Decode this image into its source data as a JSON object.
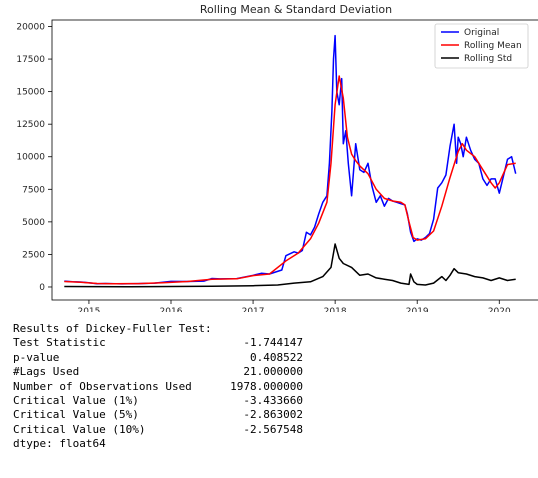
{
  "chart_data": {
    "type": "line",
    "title": "Rolling Mean & Standard Deviation",
    "xlabel": "",
    "ylabel": "",
    "xlim": [
      2014.55,
      2020.35
    ],
    "ylim": [
      -1000,
      20500
    ],
    "x_ticks": [
      2015,
      2016,
      2017,
      2018,
      2019,
      2020
    ],
    "x_tick_labels": [
      "2015",
      "2016",
      "2017",
      "2018",
      "2019",
      "2020"
    ],
    "y_ticks": [
      0,
      2500,
      5000,
      7500,
      10000,
      12500,
      15000,
      17500,
      20000
    ],
    "y_tick_labels": [
      "0",
      "2500",
      "5000",
      "7500",
      "10000",
      "12500",
      "15000",
      "17500",
      "20000"
    ],
    "grid": false,
    "legend_position": "top-right",
    "series": [
      {
        "name": "Original",
        "color": "#0000ff",
        "x": [
          2014.7,
          2014.8,
          2014.9,
          2015.0,
          2015.1,
          2015.2,
          2015.4,
          2015.6,
          2015.8,
          2016.0,
          2016.2,
          2016.4,
          2016.5,
          2016.6,
          2016.8,
          2017.0,
          2017.1,
          2017.2,
          2017.35,
          2017.4,
          2017.5,
          2017.55,
          2017.6,
          2017.65,
          2017.7,
          2017.75,
          2017.8,
          2017.85,
          2017.9,
          2017.93,
          2017.96,
          2017.98,
          2018.0,
          2018.02,
          2018.05,
          2018.08,
          2018.1,
          2018.13,
          2018.16,
          2018.2,
          2018.25,
          2018.3,
          2018.35,
          2018.4,
          2018.45,
          2018.5,
          2018.55,
          2018.6,
          2018.65,
          2018.7,
          2018.75,
          2018.8,
          2018.85,
          2018.88,
          2018.92,
          2018.96,
          2019.0,
          2019.05,
          2019.1,
          2019.15,
          2019.2,
          2019.25,
          2019.3,
          2019.35,
          2019.4,
          2019.45,
          2019.48,
          2019.5,
          2019.53,
          2019.56,
          2019.6,
          2019.65,
          2019.7,
          2019.75,
          2019.8,
          2019.85,
          2019.9,
          2019.95,
          2020.0,
          2020.05,
          2020.1,
          2020.15,
          2020.2
        ],
        "y": [
          450,
          400,
          380,
          330,
          250,
          270,
          240,
          260,
          300,
          430,
          420,
          450,
          650,
          620,
          640,
          900,
          1050,
          1000,
          1300,
          2400,
          2700,
          2600,
          2800,
          4200,
          4000,
          4600,
          5600,
          6500,
          7000,
          9500,
          13500,
          17500,
          19300,
          15000,
          14000,
          16000,
          11000,
          12000,
          9500,
          7000,
          11000,
          9000,
          8800,
          9500,
          7700,
          6500,
          7000,
          6200,
          6800,
          6600,
          6500,
          6400,
          6300,
          5600,
          4200,
          3500,
          3700,
          3600,
          3800,
          4100,
          5200,
          7600,
          8000,
          8600,
          10800,
          12500,
          9500,
          11500,
          11000,
          10000,
          11500,
          10500,
          9800,
          9500,
          8300,
          7800,
          8300,
          8300,
          7200,
          8500,
          9800,
          10000,
          8700
        ]
      },
      {
        "name": "Rolling Mean",
        "color": "#ff0000",
        "x": [
          2014.7,
          2014.9,
          2015.1,
          2015.3,
          2015.6,
          2015.9,
          2016.2,
          2016.5,
          2016.8,
          2017.0,
          2017.2,
          2017.4,
          2017.55,
          2017.7,
          2017.8,
          2017.9,
          2017.95,
          2018.0,
          2018.05,
          2018.1,
          2018.15,
          2018.2,
          2018.25,
          2018.3,
          2018.4,
          2018.5,
          2018.6,
          2018.7,
          2018.8,
          2018.85,
          2018.9,
          2018.95,
          2019.0,
          2019.1,
          2019.2,
          2019.3,
          2019.4,
          2019.5,
          2019.55,
          2019.6,
          2019.7,
          2019.8,
          2019.9,
          2019.95,
          2020.0,
          2020.1,
          2020.2
        ],
        "y": [
          420,
          360,
          270,
          250,
          260,
          330,
          420,
          600,
          630,
          870,
          1000,
          2000,
          2600,
          3700,
          4900,
          6500,
          9500,
          14000,
          16200,
          14500,
          11500,
          10200,
          9700,
          9300,
          8700,
          7500,
          6800,
          6600,
          6500,
          6300,
          5000,
          3800,
          3600,
          3700,
          4300,
          6200,
          8400,
          10400,
          11000,
          10500,
          10000,
          9000,
          8000,
          7600,
          8000,
          9400,
          9500
        ]
      },
      {
        "name": "Rolling Std",
        "color": "#000000",
        "x": [
          2014.7,
          2015.0,
          2015.5,
          2016.0,
          2016.5,
          2017.0,
          2017.3,
          2017.5,
          2017.7,
          2017.85,
          2017.95,
          2018.0,
          2018.05,
          2018.1,
          2018.2,
          2018.3,
          2018.4,
          2018.5,
          2018.6,
          2018.7,
          2018.8,
          2018.9,
          2018.92,
          2018.96,
          2019.0,
          2019.1,
          2019.2,
          2019.3,
          2019.35,
          2019.4,
          2019.45,
          2019.5,
          2019.6,
          2019.7,
          2019.8,
          2019.9,
          2020.0,
          2020.1,
          2020.2
        ],
        "y": [
          40,
          30,
          20,
          40,
          60,
          100,
          150,
          300,
          400,
          800,
          1500,
          3300,
          2200,
          1800,
          1500,
          900,
          1000,
          700,
          600,
          500,
          300,
          200,
          1000,
          400,
          200,
          150,
          300,
          800,
          500,
          900,
          1400,
          1100,
          1000,
          800,
          700,
          500,
          700,
          500,
          600
        ]
      }
    ]
  },
  "results": {
    "heading": "Results of Dickey-Fuller Test:",
    "rows": [
      {
        "label": "Test Statistic",
        "value": "-1.744147"
      },
      {
        "label": "p-value",
        "value": "0.408522"
      },
      {
        "label": "#Lags Used",
        "value": "21.000000"
      },
      {
        "label": "Number of Observations Used",
        "value": "1978.000000"
      },
      {
        "label": "Critical Value (1%)",
        "value": "-3.433660"
      },
      {
        "label": "Critical Value (5%)",
        "value": "-2.863002"
      },
      {
        "label": "Critical Value (10%)",
        "value": "-2.567548"
      }
    ],
    "dtype": "dtype: float64"
  }
}
